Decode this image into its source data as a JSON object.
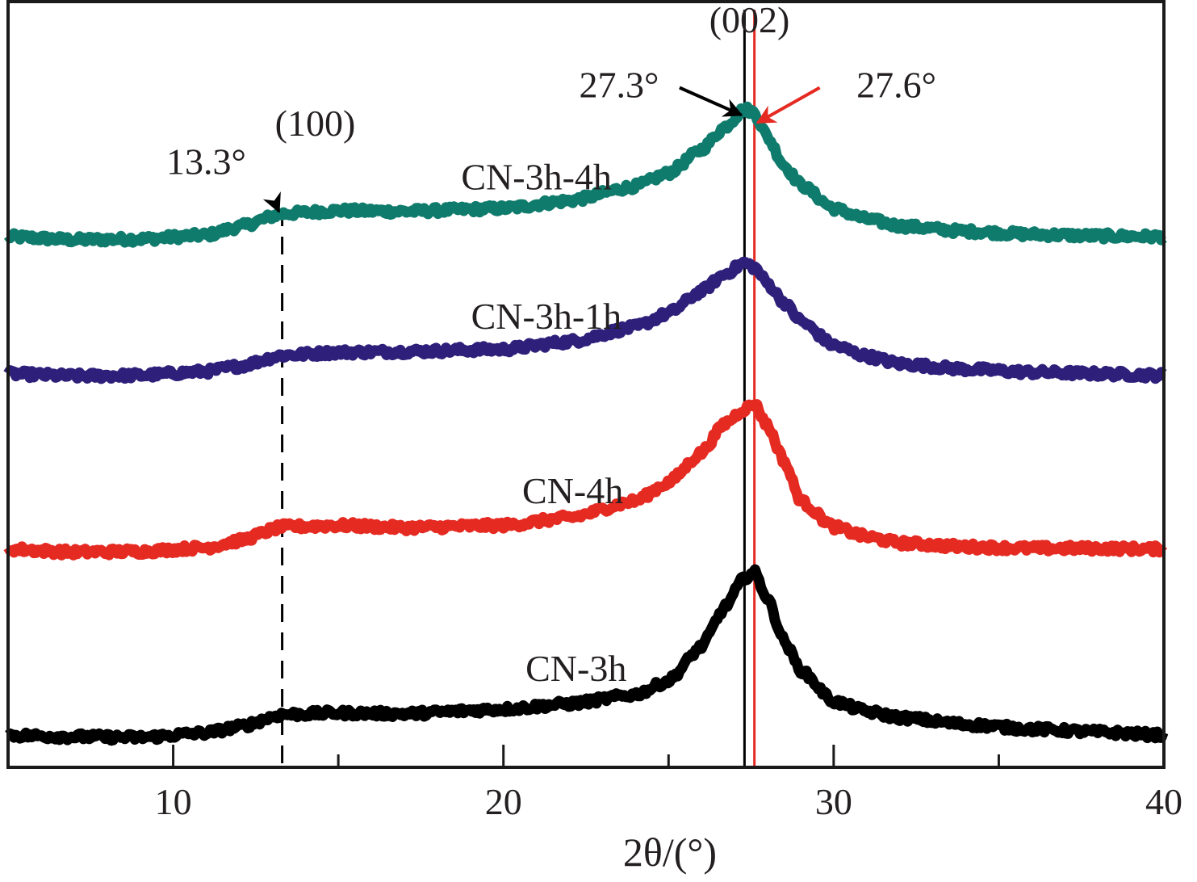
{
  "chart_data": {
    "type": "line",
    "title": "",
    "xlabel": "2θ/(°)",
    "ylabel": "",
    "xlim": [
      5,
      40
    ],
    "ylim": [
      0,
      100
    ],
    "y_units": "arbitrary intensity (stacked, offset)",
    "grid": false,
    "legend": "none (curves labelled inline)",
    "x_ticks": [
      10,
      20,
      30,
      40
    ],
    "x_tick_labels": [
      "10",
      "20",
      "30",
      "40"
    ],
    "series": [
      {
        "name": "CN-3h-4h",
        "color": "#0f7b6c",
        "label_position": {
          "x": 21.0,
          "y": 75.5
        },
        "x": [
          5,
          7,
          9,
          11,
          12,
          13.3,
          15,
          17,
          20,
          22,
          24,
          25,
          26,
          26.7,
          27.3,
          27.6,
          28,
          28.5,
          29,
          30,
          31,
          32,
          34,
          36,
          38,
          40
        ],
        "y": [
          69.3,
          68.9,
          69.0,
          69.5,
          70.6,
          72.3,
          72.7,
          72.6,
          73.0,
          74.0,
          75.9,
          77.6,
          80.7,
          83.6,
          86.0,
          85.5,
          82.3,
          78.6,
          76.1,
          73.0,
          71.6,
          70.7,
          70.0,
          69.6,
          69.4,
          69.3
        ]
      },
      {
        "name": "CN-3h-1h",
        "color": "#2e1f7a",
        "label_position": {
          "x": 21.3,
          "y": 57.3
        },
        "x": [
          5,
          7,
          9,
          11,
          12,
          13.3,
          15,
          17,
          20,
          22,
          24,
          25,
          26,
          26.7,
          27.3,
          27.6,
          28,
          28.5,
          29,
          30,
          31,
          32,
          34,
          36,
          38,
          40
        ],
        "y": [
          51.4,
          51.1,
          51.2,
          51.7,
          52.4,
          53.8,
          54.2,
          54.3,
          54.6,
          55.6,
          57.5,
          59.3,
          62.2,
          64.4,
          65.9,
          65.3,
          63.2,
          60.7,
          58.3,
          55.1,
          53.7,
          52.7,
          52.0,
          51.6,
          51.4,
          51.2
        ]
      },
      {
        "name": "CN-4h",
        "color": "#e52a22",
        "label_position": {
          "x": 22.1,
          "y": 34.5
        },
        "x": [
          5,
          7,
          9,
          11,
          12,
          13.3,
          15,
          17,
          20,
          22,
          24,
          25,
          26,
          26.7,
          27.3,
          27.6,
          28,
          28.5,
          29,
          30,
          31,
          32,
          34,
          36,
          38,
          40
        ],
        "y": [
          28.5,
          28.1,
          28.2,
          28.7,
          29.6,
          31.4,
          31.6,
          31.3,
          31.6,
          32.6,
          34.8,
          37.2,
          41.1,
          44.9,
          46.8,
          47.5,
          44.6,
          40.0,
          34.8,
          31.4,
          30.1,
          29.3,
          28.8,
          28.6,
          28.6,
          28.5
        ]
      },
      {
        "name": "CN-3h",
        "color": "#000000",
        "label_position": {
          "x": 22.2,
          "y": 11.3
        },
        "x": [
          5,
          7,
          9,
          11,
          12,
          13.3,
          15,
          17,
          20,
          22,
          24,
          25,
          26,
          26.7,
          27.3,
          27.6,
          28,
          28.5,
          29,
          30,
          31,
          32,
          34,
          36,
          38,
          40
        ],
        "y": [
          4.2,
          4.0,
          3.9,
          4.5,
          5.3,
          6.9,
          7.1,
          7.0,
          7.6,
          8.3,
          9.5,
          11.3,
          15.8,
          20.9,
          24.8,
          25.5,
          22.0,
          16.5,
          12.7,
          8.6,
          7.3,
          6.5,
          5.6,
          5.0,
          4.6,
          4.2
        ]
      }
    ],
    "reference_lines": [
      {
        "name": "(100)-dashed",
        "x": 13.3,
        "style": "dashed",
        "color": "#000000"
      },
      {
        "name": "27.3-line",
        "x": 27.3,
        "style": "solid",
        "color": "#000000"
      },
      {
        "name": "27.6-line",
        "x": 27.6,
        "style": "solid",
        "color": "#e52a22"
      }
    ],
    "annotations": [
      {
        "id": "hkl-002",
        "text": "(002)",
        "x": 27.45,
        "y": 96.0
      },
      {
        "id": "hkl-100",
        "text": "(100)",
        "x": 14.3,
        "y": 82.5
      },
      {
        "id": "angle-13-3",
        "text": "13.3°",
        "x": 11.0,
        "y": 77.5,
        "arrow_to": {
          "x": 13.2,
          "y": 72.6
        },
        "color": "#000000"
      },
      {
        "id": "angle-27-3",
        "text": "27.3°",
        "x": 23.5,
        "y": 87.5,
        "arrow_to": {
          "x": 27.2,
          "y": 85.2
        },
        "color": "#000000"
      },
      {
        "id": "angle-27-6",
        "text": "27.6°",
        "x": 31.9,
        "y": 87.5,
        "arrow_to": {
          "x": 27.7,
          "y": 84.2
        },
        "color": "#e52a22"
      }
    ]
  }
}
